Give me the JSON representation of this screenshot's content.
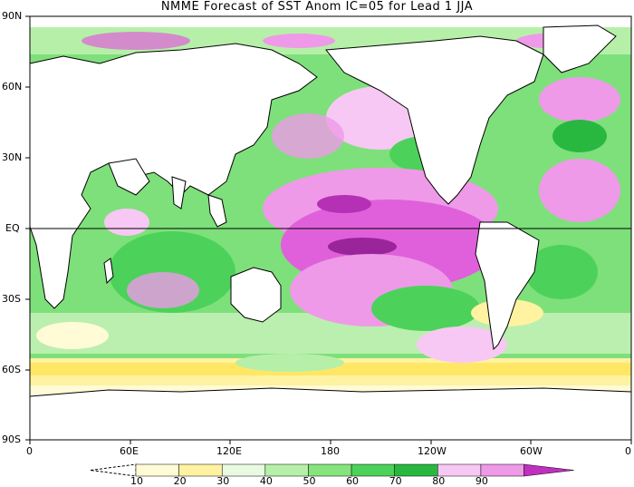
{
  "title": "NMME Forecast of SST Anom IC=05 for Lead 1 JJA",
  "lat_labels": [
    "90N",
    "60N",
    "30N",
    "EQ",
    "30S",
    "60S",
    "90S"
  ],
  "lon_labels": [
    "0",
    "60E",
    "120E",
    "180",
    "120W",
    "60W",
    "0"
  ],
  "colorbar": {
    "labels": [
      "10",
      "20",
      "30",
      "40",
      "50",
      "60",
      "70",
      "80",
      "90"
    ],
    "colors": [
      "#fffbd6",
      "#fff2a0",
      "#ffe766",
      "#e8fbe0",
      "#b6f0a8",
      "#86e47c",
      "#4cd25a",
      "#28b840",
      "#f7c8f4",
      "#ee9ae8",
      "#e060dc",
      "#c030c0"
    ]
  },
  "chart_data": {
    "type": "heatmap",
    "title": "NMME Forecast of SST Anom IC=05 for Lead 1 JJA",
    "xlabel": "",
    "ylabel": "",
    "x_ticks": [
      "0",
      "60E",
      "120E",
      "180",
      "120W",
      "60W",
      "0"
    ],
    "y_ticks": [
      "90N",
      "60N",
      "30N",
      "EQ",
      "30S",
      "60S",
      "90S"
    ],
    "levels": [
      10,
      20,
      30,
      40,
      50,
      60,
      70,
      80,
      90
    ]
  }
}
